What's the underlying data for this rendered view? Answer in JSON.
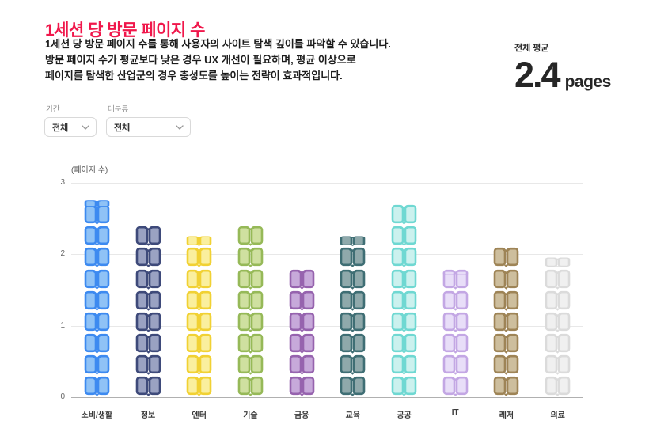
{
  "page": {
    "title": "1세션 당 방문 페이지 수",
    "title_color": "#F0174B",
    "description_lines": [
      "1세션 당 방문 페이지 수를 통해 사용자의 사이트 탐색 깊이를 파악할 수 있습니다.",
      "방문 페이지 수가 평균보다 낮은 경우 UX 개선이 필요하며, 평균 이상으로",
      "페이지를 탐색한 산업군의 경우 충성도를 높이는 전략이 효과적입니다."
    ]
  },
  "summary": {
    "label": "전체 평균",
    "value": "2.4",
    "unit": "pages"
  },
  "filters": [
    {
      "label": "기간",
      "value": "전체"
    },
    {
      "label": "대분류",
      "value": "전체"
    }
  ],
  "chart_data": {
    "type": "bar",
    "subtype": "pictogram-stacked-icons",
    "icon": "open-book-icon",
    "title": "1세션 당 방문 페이지 수",
    "ylabel": "(페이지 수)",
    "xlabel": "",
    "ylim": [
      0,
      3
    ],
    "yticks": [
      0,
      1,
      2,
      3
    ],
    "grid": true,
    "legend": false,
    "pages_per_icon": 0.3,
    "categories": [
      "소비/생활",
      "정보",
      "엔터",
      "기술",
      "금융",
      "교육",
      "공공",
      "IT",
      "레저",
      "의료"
    ],
    "values": [
      2.8,
      2.4,
      2.25,
      2.4,
      1.8,
      2.25,
      2.7,
      1.85,
      2.1,
      1.95
    ],
    "colors": [
      {
        "outline": "#3D8AF0",
        "fill": "#8FC2F6"
      },
      {
        "outline": "#3E4A7A",
        "fill": "#9AA2C2"
      },
      {
        "outline": "#F1D133",
        "fill": "#FAEF9E"
      },
      {
        "outline": "#96B958",
        "fill": "#CFE0A0"
      },
      {
        "outline": "#9663AE",
        "fill": "#C7A9DA"
      },
      {
        "outline": "#3F6E74",
        "fill": "#8FA9AB"
      },
      {
        "outline": "#6FD8D2",
        "fill": "#CBF1EE"
      },
      {
        "outline": "#C3A7E4",
        "fill": "#E8DEF8"
      },
      {
        "outline": "#9E8456",
        "fill": "#CDBE9D"
      },
      {
        "outline": "#DBDBDB",
        "fill": "#F0F0F0"
      }
    ],
    "gridline_color": "#e8e8e8",
    "zero_line_color": "#b0b0b0"
  }
}
